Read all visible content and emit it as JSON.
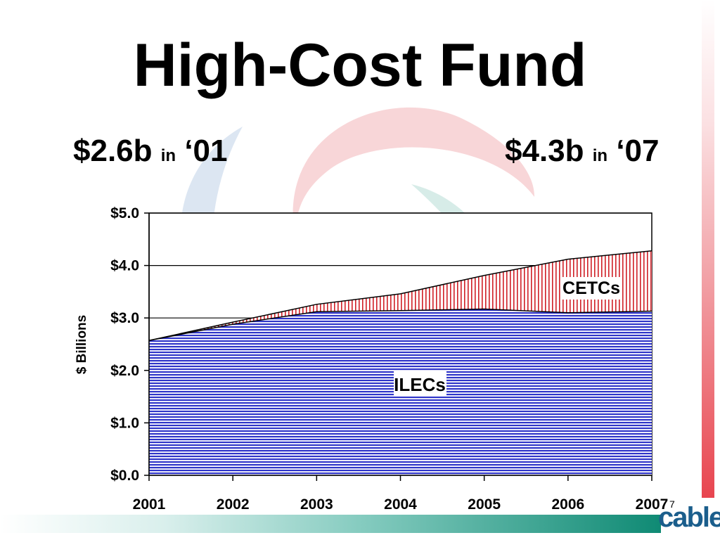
{
  "slide": {
    "title": "High-Cost Fund",
    "left_amount": "$2.6b",
    "left_in": "in",
    "left_year": "‘01",
    "right_amount": "$4.3b",
    "right_in": "in",
    "right_year": "‘07",
    "page_number": "7",
    "logo_text": "cable"
  },
  "colors": {
    "ilecs_fill": "#2f35c9",
    "cetcs_stripe": "#d01f26",
    "accent_red": "#e8454f",
    "accent_teal": "#0f8a74",
    "logo_blue": "#1b5e8c"
  },
  "chart_data": {
    "type": "area",
    "stacked": true,
    "title": "",
    "xlabel": "",
    "ylabel": "$ Billions",
    "ylim": [
      0,
      5
    ],
    "y_ticks": [
      0,
      1,
      2,
      3,
      4,
      5
    ],
    "y_tick_labels": [
      "$0.0",
      "$1.0",
      "$2.0",
      "$3.0",
      "$4.0",
      "$5.0"
    ],
    "x": [
      2001,
      2002,
      2003,
      2004,
      2005,
      2006,
      2007
    ],
    "x_tick_labels": [
      "2001",
      "2002",
      "2003",
      "2004",
      "2005",
      "2006",
      "2007"
    ],
    "grid": true,
    "series": [
      {
        "name": "ILECs",
        "values": [
          2.57,
          2.88,
          3.12,
          3.14,
          3.17,
          3.1,
          3.13
        ]
      },
      {
        "name": "CETCs",
        "values": [
          0.0,
          0.04,
          0.14,
          0.32,
          0.64,
          1.02,
          1.15
        ]
      }
    ],
    "annotations": [
      "ILECs",
      "CETCs"
    ]
  }
}
